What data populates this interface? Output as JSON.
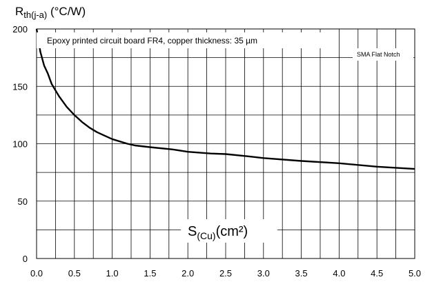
{
  "chart_data": {
    "type": "line",
    "ylabel_main": "R",
    "ylabel_sub": "th(j-a)",
    "ylabel_unit": " (°C/W)",
    "xlabel_main": "S",
    "xlabel_sub": "(Cu)",
    "xlabel_unit": "(cm²)",
    "annotation": "Epoxy printed circuit board FR4, copper thickness:  35 µm",
    "legend_label": "SMA Flat Notch",
    "xlim": [
      0,
      5
    ],
    "ylim": [
      0,
      200
    ],
    "x_ticks": [
      "0.0",
      "0.5",
      "1.0",
      "1.5",
      "2.0",
      "2.5",
      "3.0",
      "3.5",
      "4.0",
      "4.5",
      "5.0"
    ],
    "y_ticks": [
      "0",
      "50",
      "100",
      "150",
      "200"
    ],
    "grid": true,
    "series": [
      {
        "x": [
          0.0,
          0.02,
          0.05,
          0.1,
          0.15,
          0.2,
          0.3,
          0.4,
          0.5,
          0.6,
          0.7,
          0.8,
          0.9,
          1.0,
          1.1,
          1.2,
          1.3,
          1.5,
          1.8,
          2.0,
          2.3,
          2.5,
          2.8,
          3.0,
          3.5,
          4.0,
          4.5,
          5.0
        ],
        "y": [
          200,
          192,
          180,
          168,
          161,
          152,
          141,
          132,
          125,
          119,
          114,
          110,
          107,
          104,
          102,
          100,
          98.5,
          97,
          95,
          93,
          91.5,
          91,
          89,
          87.5,
          85,
          83,
          80,
          78
        ]
      }
    ]
  }
}
